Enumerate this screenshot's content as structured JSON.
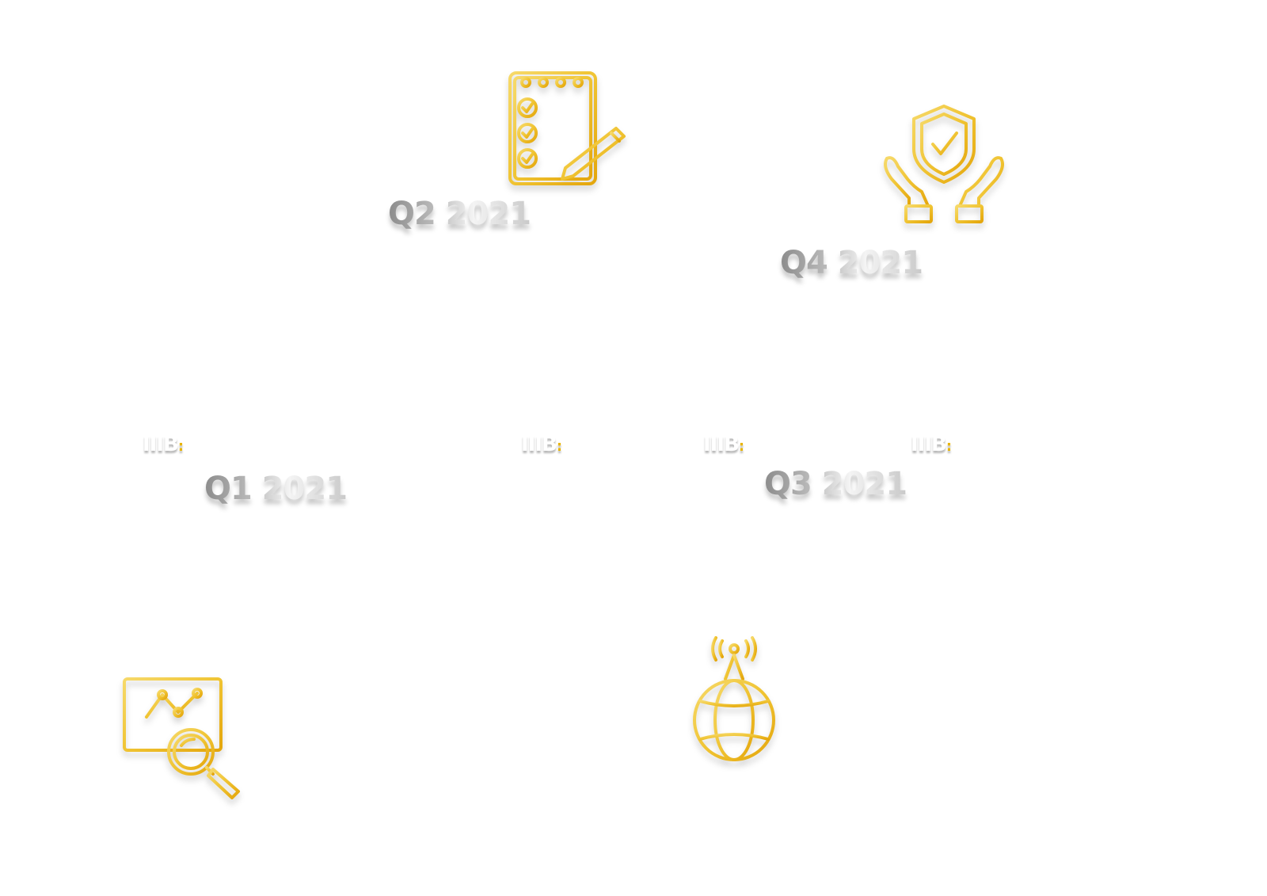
{
  "milestones": [
    {
      "quarter": "Q1 2021",
      "icon": "monitor-analytics-icon"
    },
    {
      "quarter": "Q2 2021",
      "icon": "checklist-notepad-icon"
    },
    {
      "quarter": "Q3 2021",
      "icon": "globe-antenna-icon"
    },
    {
      "quarter": "Q4 2021",
      "icon": "hands-shield-icon"
    }
  ],
  "brand_marks": [
    {
      "text": "IIIB",
      "dot": ":"
    },
    {
      "text": "IIIB",
      "dot": ":"
    },
    {
      "text": "IIIB",
      "dot": ":"
    },
    {
      "text": "IIIB",
      "dot": ":"
    }
  ],
  "colors": {
    "icon_gold_light": "#f6d96a",
    "icon_gold_dark": "#e4a60c",
    "label_silver": "#bdbdbd",
    "accent": "#e8b400"
  }
}
